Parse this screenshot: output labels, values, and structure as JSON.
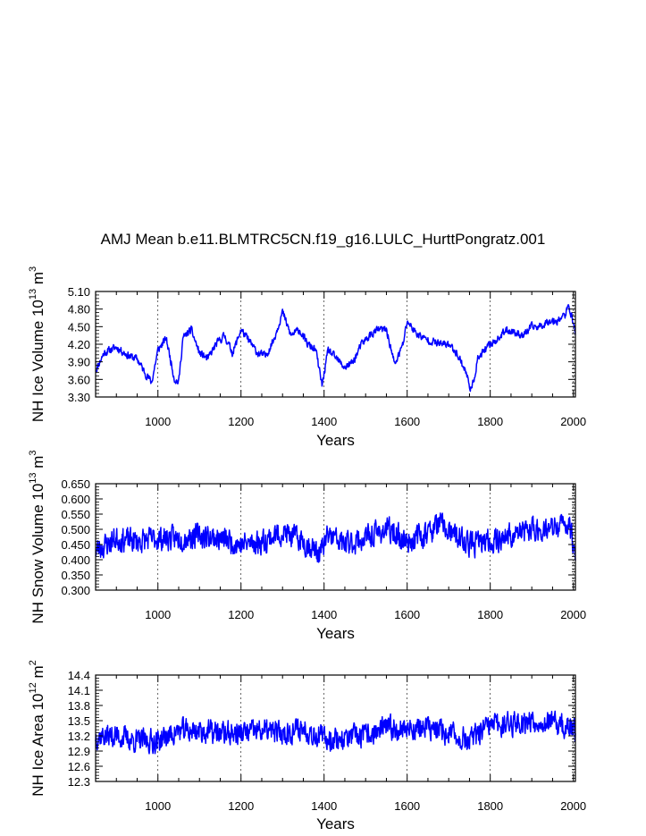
{
  "title": "AMJ Mean b.e11.BLMTRC5CN.f19_g16.LULC_HurttPongratz.001",
  "colors": {
    "series": "#0000ff",
    "axis": "#000000",
    "background": "#ffffff"
  },
  "chart_data": [
    {
      "type": "line",
      "name": "ice-volume",
      "ylabel_main": "NH Ice Volume 10",
      "ylabel_exp": "13",
      "ylabel_unit": "m",
      "ylabel_unit_exp": "3",
      "xlabel": "Years",
      "xlim": [
        850,
        2005
      ],
      "ylim": [
        3.3,
        5.1
      ],
      "xticks": [
        1000,
        1200,
        1400,
        1600,
        1800,
        2000
      ],
      "yticks": [
        "3.30",
        "3.60",
        "3.90",
        "4.20",
        "4.50",
        "4.80",
        "5.10"
      ],
      "gridlines_x": [
        1000,
        1200,
        1400,
        1600,
        1800,
        2000
      ],
      "anchors": [
        [
          850,
          3.75
        ],
        [
          870,
          4.05
        ],
        [
          900,
          4.15
        ],
        [
          930,
          4.0
        ],
        [
          950,
          3.95
        ],
        [
          970,
          3.7
        ],
        [
          985,
          3.55
        ],
        [
          1000,
          4.1
        ],
        [
          1020,
          4.3
        ],
        [
          1040,
          3.6
        ],
        [
          1050,
          3.55
        ],
        [
          1060,
          4.3
        ],
        [
          1080,
          4.45
        ],
        [
          1100,
          4.05
        ],
        [
          1120,
          3.95
        ],
        [
          1140,
          4.2
        ],
        [
          1160,
          4.35
        ],
        [
          1180,
          4.05
        ],
        [
          1200,
          4.45
        ],
        [
          1220,
          4.25
        ],
        [
          1240,
          4.05
        ],
        [
          1260,
          4.0
        ],
        [
          1280,
          4.3
        ],
        [
          1300,
          4.75
        ],
        [
          1320,
          4.35
        ],
        [
          1340,
          4.45
        ],
        [
          1360,
          4.2
        ],
        [
          1380,
          4.1
        ],
        [
          1395,
          3.5
        ],
        [
          1410,
          4.1
        ],
        [
          1430,
          3.95
        ],
        [
          1450,
          3.8
        ],
        [
          1470,
          3.9
        ],
        [
          1490,
          4.2
        ],
        [
          1510,
          4.35
        ],
        [
          1530,
          4.45
        ],
        [
          1550,
          4.45
        ],
        [
          1570,
          3.85
        ],
        [
          1590,
          4.2
        ],
        [
          1600,
          4.6
        ],
        [
          1620,
          4.4
        ],
        [
          1640,
          4.3
        ],
        [
          1660,
          4.25
        ],
        [
          1680,
          4.2
        ],
        [
          1700,
          4.2
        ],
        [
          1720,
          4.05
        ],
        [
          1740,
          3.75
        ],
        [
          1755,
          3.4
        ],
        [
          1770,
          3.95
        ],
        [
          1800,
          4.2
        ],
        [
          1820,
          4.3
        ],
        [
          1840,
          4.45
        ],
        [
          1860,
          4.4
        ],
        [
          1880,
          4.35
        ],
        [
          1900,
          4.5
        ],
        [
          1920,
          4.5
        ],
        [
          1940,
          4.6
        ],
        [
          1960,
          4.6
        ],
        [
          1980,
          4.7
        ],
        [
          1990,
          4.85
        ],
        [
          2005,
          4.4
        ]
      ],
      "noise_amp": 0.09,
      "seed": 11
    },
    {
      "type": "line",
      "name": "snow-volume",
      "ylabel_main": "NH Snow Volume 10",
      "ylabel_exp": "13",
      "ylabel_unit": "m",
      "ylabel_unit_exp": "3",
      "xlabel": "Years",
      "xlim": [
        850,
        2005
      ],
      "ylim": [
        0.3,
        0.65
      ],
      "xticks": [
        1000,
        1200,
        1400,
        1600,
        1800,
        2000
      ],
      "yticks": [
        "0.300",
        "0.350",
        "0.400",
        "0.450",
        "0.500",
        "0.550",
        "0.600",
        "0.650"
      ],
      "gridlines_x": [
        1000,
        1200,
        1400,
        1600,
        1800,
        2000
      ],
      "anchors": [
        [
          850,
          0.43
        ],
        [
          900,
          0.47
        ],
        [
          950,
          0.46
        ],
        [
          1000,
          0.47
        ],
        [
          1050,
          0.47
        ],
        [
          1100,
          0.48
        ],
        [
          1150,
          0.47
        ],
        [
          1200,
          0.45
        ],
        [
          1250,
          0.46
        ],
        [
          1300,
          0.49
        ],
        [
          1350,
          0.46
        ],
        [
          1390,
          0.42
        ],
        [
          1410,
          0.48
        ],
        [
          1450,
          0.45
        ],
        [
          1500,
          0.47
        ],
        [
          1550,
          0.5
        ],
        [
          1600,
          0.46
        ],
        [
          1650,
          0.49
        ],
        [
          1680,
          0.52
        ],
        [
          1700,
          0.49
        ],
        [
          1750,
          0.45
        ],
        [
          1800,
          0.46
        ],
        [
          1850,
          0.48
        ],
        [
          1900,
          0.5
        ],
        [
          1950,
          0.5
        ],
        [
          1990,
          0.52
        ],
        [
          2005,
          0.42
        ]
      ],
      "noise_amp": 0.055,
      "seed": 23
    },
    {
      "type": "line",
      "name": "ice-area",
      "ylabel_main": "NH Ice Area 10",
      "ylabel_exp": "12",
      "ylabel_unit": "m",
      "ylabel_unit_exp": "2",
      "xlabel": "Years",
      "xlim": [
        850,
        2005
      ],
      "ylim": [
        12.3,
        14.4
      ],
      "xticks": [
        1000,
        1200,
        1400,
        1600,
        1800,
        2000
      ],
      "yticks": [
        "12.3",
        "12.6",
        "12.9",
        "13.2",
        "13.5",
        "13.8",
        "14.1",
        "14.4"
      ],
      "gridlines_x": [
        1000,
        1200,
        1400,
        1600,
        1800,
        2000
      ],
      "anchors": [
        [
          850,
          13.2
        ],
        [
          900,
          13.2
        ],
        [
          950,
          13.1
        ],
        [
          1000,
          13.1
        ],
        [
          1050,
          13.3
        ],
        [
          1100,
          13.3
        ],
        [
          1150,
          13.25
        ],
        [
          1200,
          13.25
        ],
        [
          1250,
          13.3
        ],
        [
          1300,
          13.25
        ],
        [
          1350,
          13.35
        ],
        [
          1400,
          13.15
        ],
        [
          1450,
          13.15
        ],
        [
          1500,
          13.2
        ],
        [
          1550,
          13.35
        ],
        [
          1600,
          13.35
        ],
        [
          1650,
          13.35
        ],
        [
          1700,
          13.25
        ],
        [
          1750,
          13.1
        ],
        [
          1800,
          13.4
        ],
        [
          1850,
          13.45
        ],
        [
          1900,
          13.5
        ],
        [
          1950,
          13.45
        ],
        [
          2005,
          13.3
        ]
      ],
      "noise_amp": 0.32,
      "seed": 37
    }
  ]
}
